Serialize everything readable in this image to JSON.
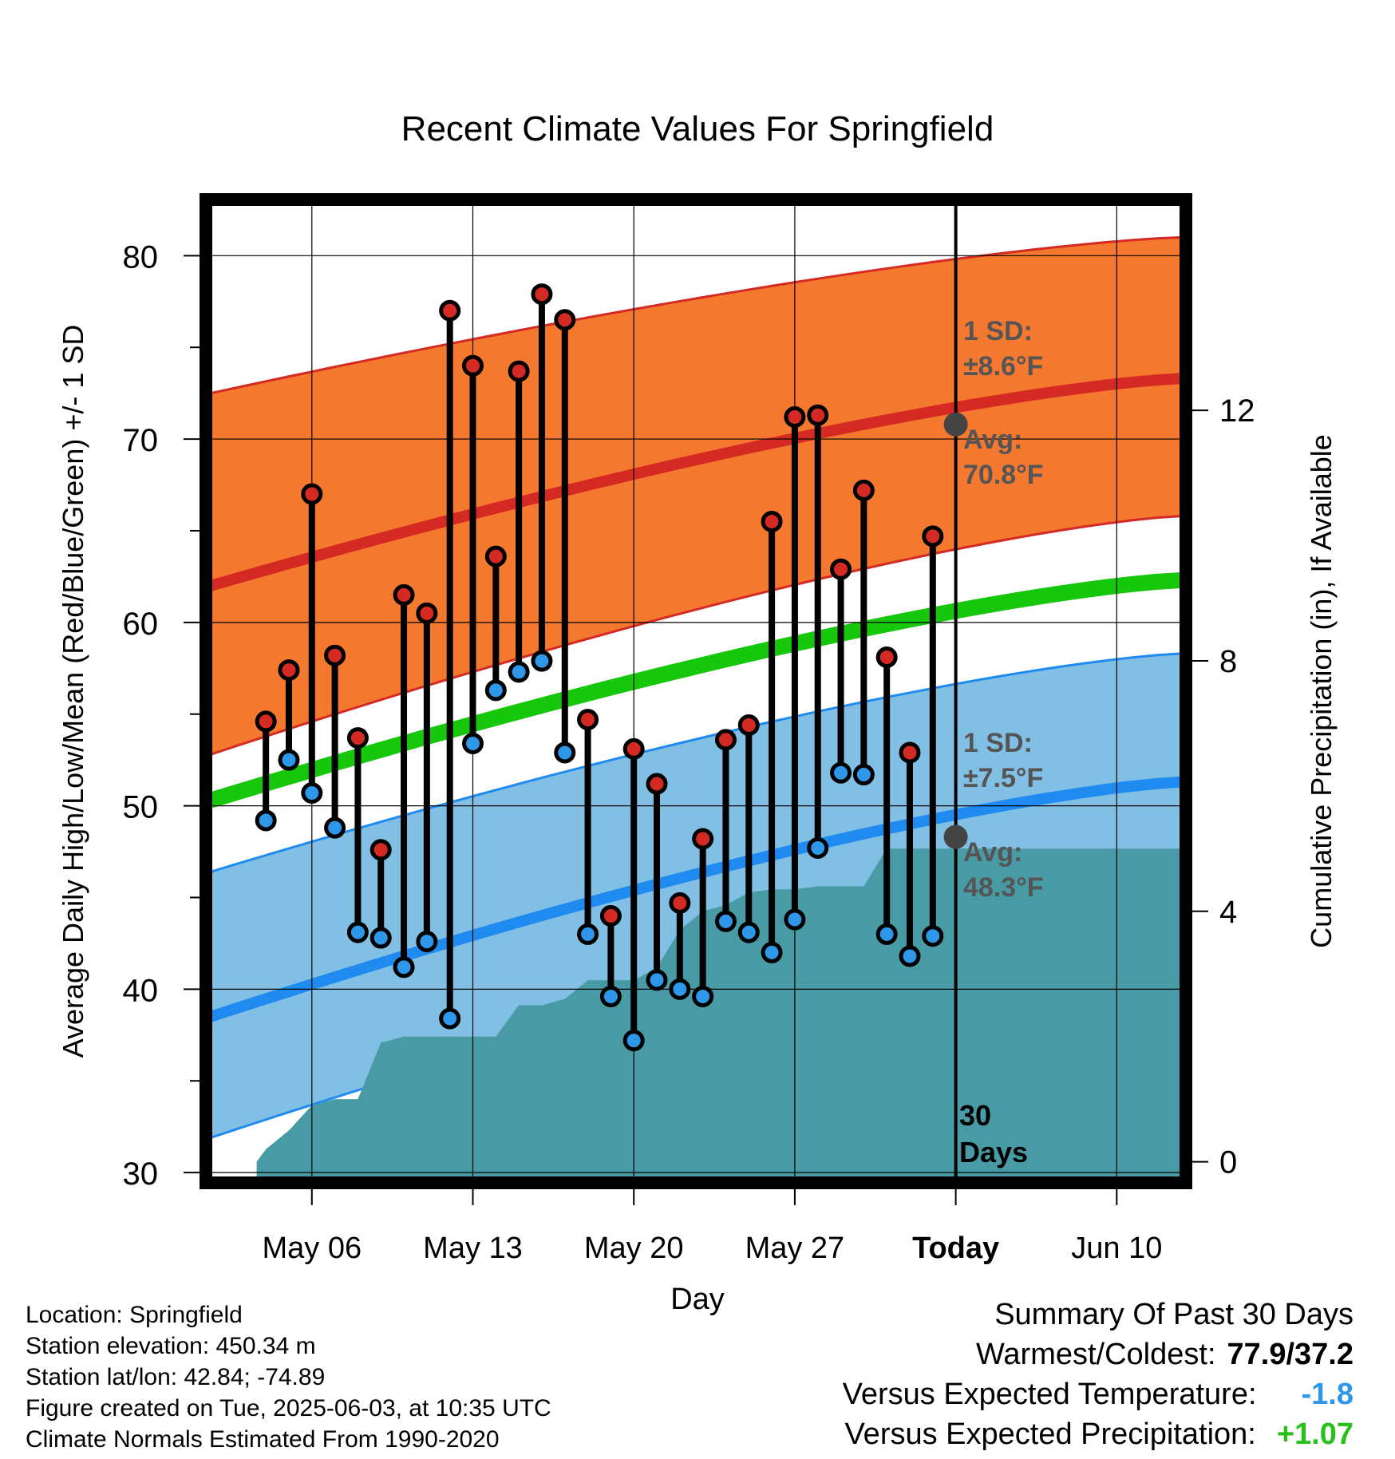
{
  "chart_data": {
    "type": "line",
    "title": "Recent Climate Values For Springfield",
    "xlabel": "Day",
    "ylabel_left": "Average Daily High/Low/Mean (Red/Blue/Green) +/- 1 SD",
    "ylabel_right": "Cumulative Precipitation (in), If Available",
    "ylim_left": [
      29.7,
      82.8
    ],
    "ylim_right": [
      -0.26,
      15.29
    ],
    "y_ticks_left": [
      30,
      40,
      50,
      60,
      70,
      80
    ],
    "y_ticks_right": [
      0,
      4,
      8,
      12
    ],
    "x_range_days": [
      -32.4,
      9.8
    ],
    "x_ticks": [
      {
        "label": "May 06",
        "offset": -28
      },
      {
        "label": "May 13",
        "offset": -21
      },
      {
        "label": "May 20",
        "offset": -14
      },
      {
        "label": "May 27",
        "offset": -7
      },
      {
        "label": "Today",
        "offset": 0
      },
      {
        "label": "Jun 10",
        "offset": 7
      }
    ],
    "today_line_label": "30 Days",
    "normals": {
      "high_avg_start": 62.0,
      "high_avg_end": 73.3,
      "high_upper_start": 72.5,
      "high_upper_end": 81.0,
      "high_lower_start": 52.8,
      "high_lower_end": 65.8,
      "low_avg_start": 38.5,
      "low_avg_end": 51.3,
      "low_upper_start": 46.4,
      "low_upper_end": 58.3,
      "low_lower_start": 31.9,
      "low_lower_end": 44.9,
      "mean_start": 50.3,
      "mean_end": 62.3
    },
    "annotations": {
      "high_sd": "±8.6°F",
      "high_avg": "70.8°F",
      "low_sd": "±7.5°F",
      "low_avg": "48.3°F",
      "high_avg_today": 70.8,
      "low_avg_today": 48.3,
      "sd_label": "1 SD:",
      "avg_label": "Avg:"
    },
    "series": [
      {
        "name": "High",
        "x": [
          -30,
          -29,
          -28,
          -27,
          -26,
          -25,
          -24,
          -23,
          -22,
          -21,
          -20,
          -19,
          -18,
          -17,
          -16,
          -15,
          -14,
          -13,
          -12,
          -11,
          -10,
          -9,
          -8,
          -7,
          -6,
          -5,
          -4,
          -3,
          -2,
          -1
        ],
        "values": [
          54.6,
          57.4,
          67.0,
          58.2,
          53.7,
          47.6,
          61.5,
          60.5,
          77.0,
          74.0,
          63.6,
          73.7,
          77.9,
          76.5,
          54.7,
          44.0,
          53.1,
          51.2,
          44.7,
          48.2,
          53.6,
          54.4,
          65.5,
          71.2,
          71.3,
          62.9,
          67.2,
          58.1,
          52.9,
          64.7
        ]
      },
      {
        "name": "Low",
        "x": [
          -30,
          -29,
          -28,
          -27,
          -26,
          -25,
          -24,
          -23,
          -22,
          -21,
          -20,
          -19,
          -18,
          -17,
          -16,
          -15,
          -14,
          -13,
          -12,
          -11,
          -10,
          -9,
          -8,
          -7,
          -6,
          -5,
          -4,
          -3,
          -2,
          -1
        ],
        "values": [
          49.2,
          52.5,
          50.7,
          48.8,
          43.1,
          42.8,
          41.2,
          42.6,
          38.4,
          53.4,
          56.3,
          57.3,
          57.9,
          52.9,
          43.0,
          39.6,
          37.2,
          40.5,
          40.0,
          39.6,
          43.7,
          43.1,
          42.0,
          43.8,
          47.7,
          51.8,
          51.7,
          43.0,
          41.8,
          42.9
        ]
      },
      {
        "name": "Precipitation",
        "x": [
          -30.4,
          -30,
          -29,
          -28,
          -27,
          -26,
          -25,
          -24,
          -23,
          -22,
          -21,
          -20,
          -19,
          -18,
          -17,
          -16,
          -15,
          -14,
          -13,
          -12,
          -11,
          -10,
          -9,
          -8,
          -7,
          -6,
          -5,
          -4,
          -3,
          -2,
          -1,
          0,
          9.8
        ],
        "values": [
          0,
          0.2,
          0.5,
          0.9,
          1.0,
          1.0,
          1.9,
          2.0,
          2.0,
          2.0,
          2.0,
          2.0,
          2.5,
          2.5,
          2.6,
          2.9,
          2.9,
          2.9,
          3.1,
          3.7,
          4.0,
          4.1,
          4.3,
          4.35,
          4.35,
          4.4,
          4.4,
          4.4,
          5.0,
          5.0,
          5.0,
          5.0,
          5.0
        ]
      }
    ]
  },
  "info": {
    "location": "Location: Springfield",
    "elevation": "Station elevation: 450.34 m",
    "latlon": "Station lat/lon: 42.84; -74.89",
    "created": "Figure created on Tue, 2025-06-03, at 10:35 UTC",
    "normals": "Climate Normals Estimated From 1990-2020"
  },
  "summary": {
    "title": "Summary Of Past 30 Days",
    "warm_cold_label": "Warmest/Coldest:",
    "warm_cold_value": "77.9/37.2",
    "temp_label": "Versus Expected Temperature:",
    "temp_value": "-1.8",
    "precip_label": "Versus Expected Precipitation:",
    "precip_value": "+1.07"
  },
  "colors": {
    "high_band": "#f5782f",
    "high_avg": "#d42a23",
    "high_edge": "#d42a23",
    "low_band": "#82bfe5",
    "low_avg": "#1f8bf0",
    "low_edge": "#1f8bf0",
    "mean": "#16c70c",
    "precip": "#489ba4",
    "high_dot": "#d42a23",
    "low_dot": "#2e97ea",
    "annotation_text": "#555555",
    "today_dot": "#444444"
  }
}
